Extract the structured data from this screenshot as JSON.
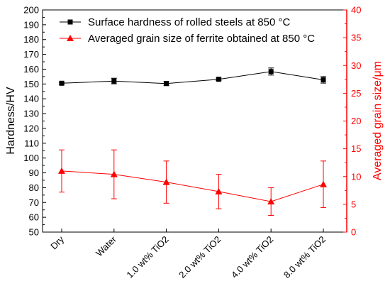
{
  "chart_data": {
    "type": "line",
    "categories": [
      "Dry",
      "Water",
      "1.0 wt% TiO2",
      "2.0 wt% TiO2",
      "4.0 wt% TiO2",
      "8.0 wt% TiO2"
    ],
    "ylabel_left": "Hardness/HV",
    "ylabel_right": "Averaged grain size/μm",
    "ylim_left": [
      50,
      200
    ],
    "ylim_right": [
      0,
      40
    ],
    "yticks_left": [
      50,
      60,
      70,
      80,
      90,
      100,
      110,
      120,
      130,
      140,
      150,
      160,
      170,
      180,
      190,
      200
    ],
    "yticks_right": [
      0,
      5,
      10,
      15,
      20,
      25,
      30,
      35,
      40
    ],
    "grid": false,
    "legend_position": "top",
    "series": [
      {
        "name": "Surface hardness of rolled steels at 850 °C",
        "axis": "left",
        "color": "#000000",
        "marker": "square",
        "values": [
          150.5,
          152.0,
          150.3,
          153.2,
          158.4,
          152.8
        ],
        "errors": [
          0.6,
          1.9,
          1.4,
          0.8,
          2.4,
          2.2
        ]
      },
      {
        "name": "Averaged grain size of ferrite obtained at 850 °C",
        "axis": "right",
        "color": "#ff0000",
        "marker": "triangle",
        "values": [
          11.0,
          10.4,
          9.0,
          7.3,
          5.5,
          8.6
        ],
        "errors": [
          3.8,
          4.4,
          3.8,
          3.1,
          2.5,
          4.2
        ]
      }
    ]
  }
}
